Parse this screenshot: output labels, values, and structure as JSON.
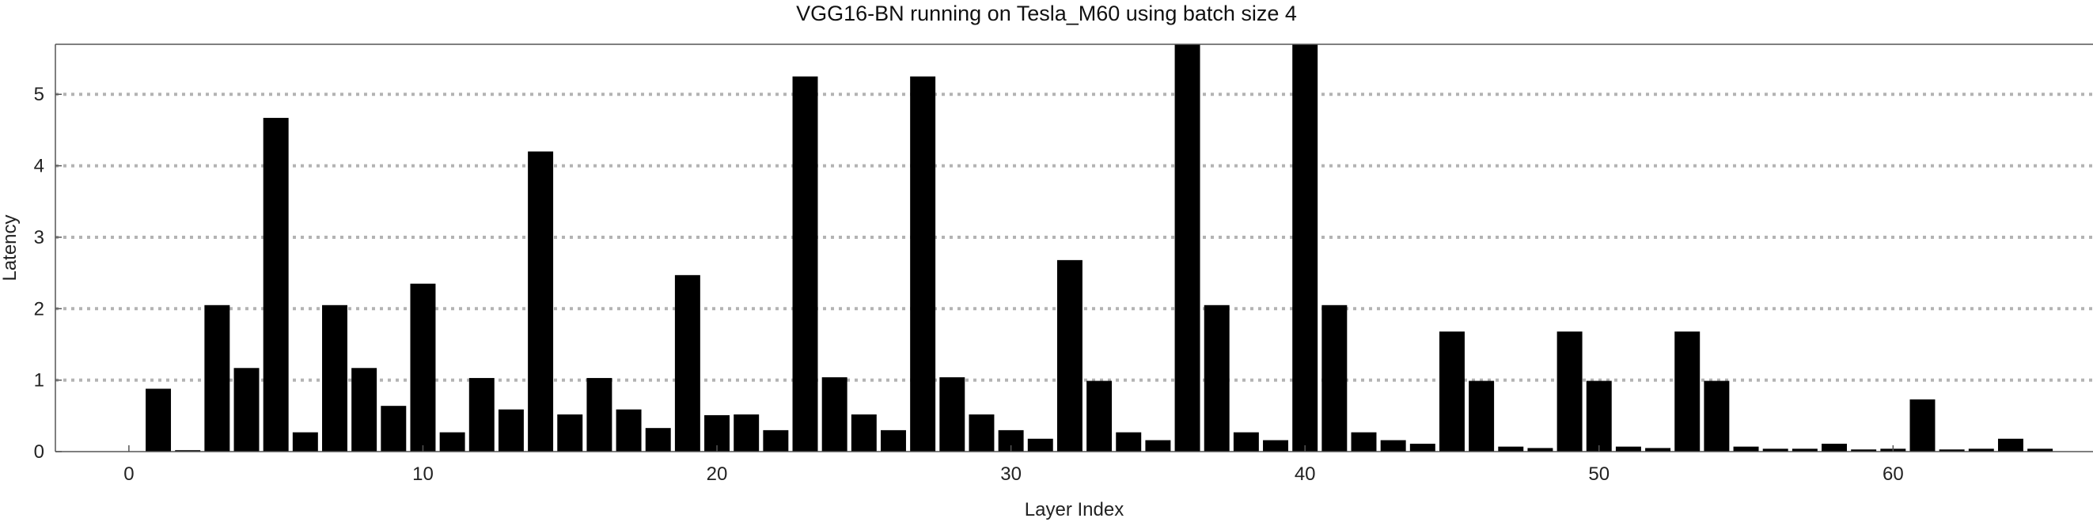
{
  "chart_data": {
    "type": "bar",
    "title": "VGG16-BN running on Tesla_M60 using batch size 4",
    "xlabel": "Layer Index",
    "ylabel": "Latency",
    "x": [
      1,
      2,
      3,
      4,
      5,
      6,
      7,
      8,
      9,
      10,
      11,
      12,
      13,
      14,
      15,
      16,
      17,
      18,
      19,
      20,
      21,
      22,
      23,
      24,
      25,
      26,
      27,
      28,
      29,
      30,
      31,
      32,
      33,
      34,
      35,
      36,
      37,
      38,
      39,
      40,
      41,
      42,
      43,
      44,
      45,
      46,
      47,
      48,
      49,
      50,
      51,
      52,
      53,
      54,
      55,
      56,
      57,
      58,
      59,
      60,
      61,
      62,
      63,
      64,
      65
    ],
    "values": [
      0.88,
      0.02,
      2.05,
      1.17,
      4.67,
      0.27,
      2.05,
      1.17,
      0.64,
      2.35,
      0.27,
      1.03,
      0.59,
      4.2,
      0.52,
      1.03,
      0.59,
      0.33,
      2.47,
      0.51,
      0.52,
      0.3,
      5.25,
      1.04,
      0.52,
      0.3,
      5.25,
      1.04,
      0.52,
      0.3,
      0.18,
      2.68,
      0.99,
      0.27,
      0.16,
      5.7,
      2.05,
      0.27,
      0.16,
      5.7,
      2.05,
      0.27,
      0.16,
      0.11,
      1.68,
      0.99,
      0.07,
      0.05,
      1.68,
      0.99,
      0.07,
      0.05,
      1.68,
      0.99,
      0.07,
      0.04,
      0.04,
      0.11,
      0.03,
      0.04,
      0.73,
      0.03,
      0.04,
      0.18,
      0.04
    ],
    "xlim": [
      -2.5,
      66.8
    ],
    "ylim": [
      0,
      5.7
    ],
    "x_ticks": [
      0,
      10,
      20,
      30,
      40,
      50,
      60
    ],
    "y_ticks": [
      0,
      1,
      2,
      3,
      4,
      5
    ],
    "grid": "horizontal dotted",
    "bar_color": "#000000",
    "grid_color": "#b3b3b3"
  }
}
